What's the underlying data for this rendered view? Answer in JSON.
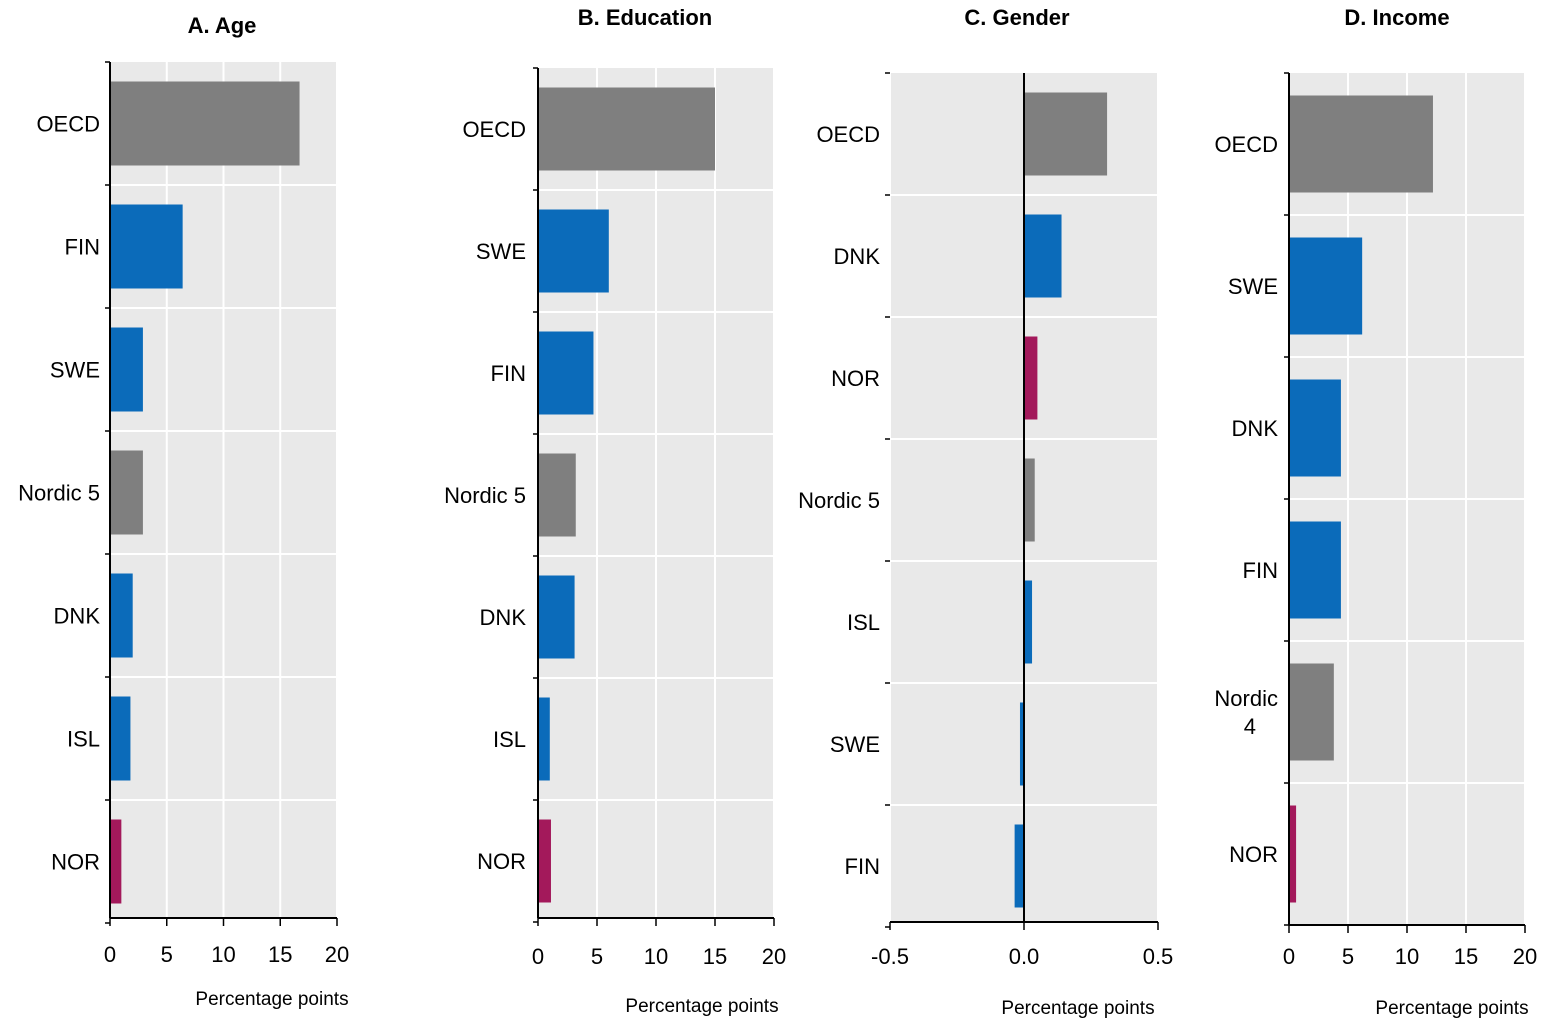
{
  "colors": {
    "plot_bg": "#e9e9e9",
    "grid": "#ffffff",
    "axis": "#000000",
    "aggregate": "#7f7f7f",
    "nordic": "#0b6bba",
    "norway": "#a3195b"
  },
  "chart_data": [
    {
      "type": "bar",
      "orientation": "horizontal",
      "title": "A. Age",
      "xlabel": "Percentage points",
      "categories": [
        "OECD",
        "FIN",
        "SWE",
        "Nordic 5",
        "DNK",
        "ISL",
        "NOR"
      ],
      "values": [
        16.7,
        6.4,
        2.9,
        2.9,
        2.0,
        1.8,
        1.0
      ],
      "color_groups": [
        "aggregate",
        "nordic",
        "nordic",
        "aggregate",
        "nordic",
        "nordic",
        "norway"
      ],
      "xlim": [
        0,
        20
      ],
      "xticks": [
        0,
        5,
        10,
        15,
        20
      ],
      "xtick_labels": [
        "0",
        "5",
        "10",
        "15",
        "20"
      ],
      "grid": true
    },
    {
      "type": "bar",
      "orientation": "horizontal",
      "title": "B. Education",
      "xlabel": "Percentage points",
      "categories": [
        "OECD",
        "SWE",
        "FIN",
        "Nordic 5",
        "DNK",
        "ISL",
        "NOR"
      ],
      "values": [
        15.0,
        6.0,
        4.7,
        3.2,
        3.1,
        1.0,
        1.1
      ],
      "color_groups": [
        "aggregate",
        "nordic",
        "nordic",
        "aggregate",
        "nordic",
        "nordic",
        "norway"
      ],
      "xlim": [
        0,
        20
      ],
      "xticks": [
        0,
        5,
        10,
        15,
        20
      ],
      "xtick_labels": [
        "0",
        "5",
        "10",
        "15",
        "20"
      ],
      "grid": true
    },
    {
      "type": "bar",
      "orientation": "horizontal",
      "title": "C. Gender",
      "xlabel": "Percentage points",
      "categories": [
        "OECD",
        "DNK",
        "NOR",
        "Nordic 5",
        "ISL",
        "SWE",
        "FIN"
      ],
      "values": [
        0.31,
        0.14,
        0.05,
        0.04,
        0.03,
        -0.015,
        -0.035
      ],
      "color_groups": [
        "aggregate",
        "nordic",
        "norway",
        "aggregate",
        "nordic",
        "nordic",
        "nordic"
      ],
      "xlim": [
        -0.5,
        0.5
      ],
      "xticks": [
        -0.5,
        0.0,
        0.5
      ],
      "xtick_labels": [
        "-0.5",
        "0.0",
        "0.5"
      ],
      "grid": true
    },
    {
      "type": "bar",
      "orientation": "horizontal",
      "title": "D. Income",
      "xlabel": "Percentage points",
      "categories": [
        "OECD",
        "SWE",
        "DNK",
        "FIN",
        "Nordic 4",
        "NOR"
      ],
      "values": [
        12.2,
        6.2,
        4.4,
        4.4,
        3.8,
        0.6
      ],
      "color_groups": [
        "aggregate",
        "nordic",
        "nordic",
        "nordic",
        "aggregate",
        "norway"
      ],
      "xlim": [
        0,
        20
      ],
      "xticks": [
        0,
        5,
        10,
        15,
        20
      ],
      "xtick_labels": [
        "0",
        "5",
        "10",
        "15",
        "20"
      ],
      "grid": true
    }
  ]
}
